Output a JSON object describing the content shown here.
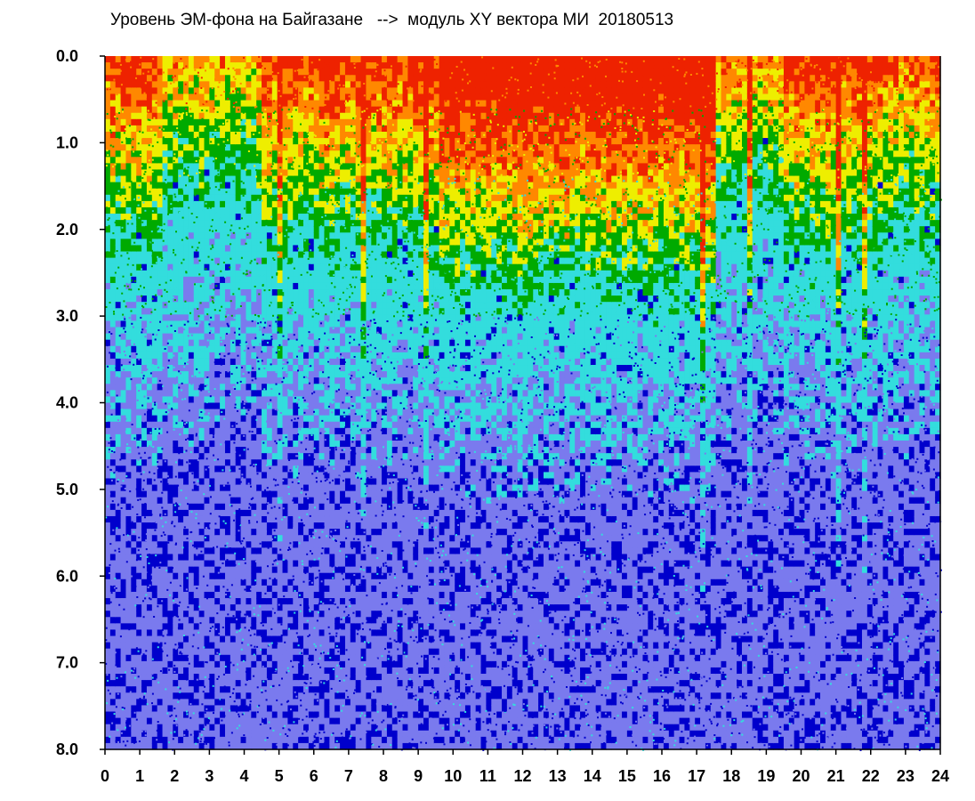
{
  "chart_data": {
    "type": "heatmap",
    "title": "Уровень ЭМ-фона на Байгазане   -->  модуль XY вектора МИ  20180513",
    "xlabel": "",
    "ylabel": "",
    "x_ticks": [
      "0",
      "1",
      "2",
      "3",
      "4",
      "5",
      "6",
      "7",
      "8",
      "9",
      "10",
      "11",
      "12",
      "13",
      "14",
      "15",
      "16",
      "17",
      "18",
      "19",
      "20",
      "21",
      "22",
      "23",
      "24"
    ],
    "y_ticks": [
      "0.0",
      "1.0",
      "2.0",
      "3.0",
      "4.0",
      "5.0",
      "6.0",
      "7.0",
      "8.0"
    ],
    "xlim": [
      0,
      24
    ],
    "ylim": [
      0,
      8
    ],
    "y_inverted": true,
    "grid": false,
    "colormap": [
      "#0000cc",
      "#7a7aee",
      "#33dddd",
      "#00aa00",
      "#eeee00",
      "#ff8800",
      "#ee2200"
    ],
    "background": "#ffffff"
  }
}
